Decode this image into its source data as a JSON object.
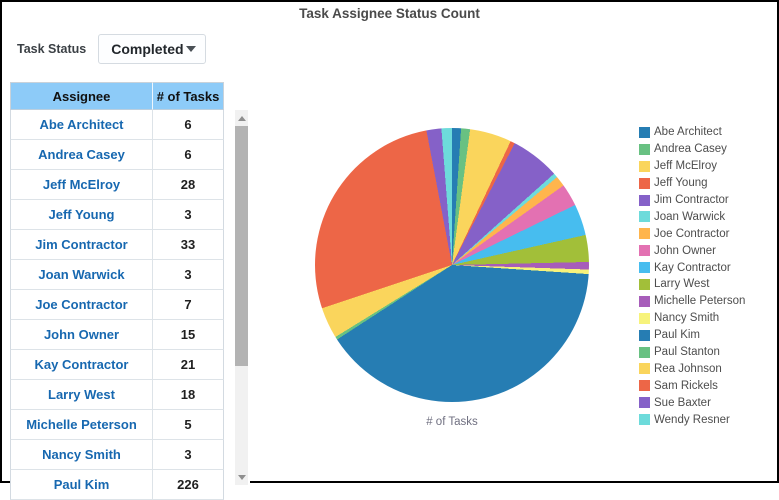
{
  "title": "Task Assignee Status Count",
  "filter": {
    "label": "Task Status",
    "value": "Completed"
  },
  "table": {
    "columns": [
      "Assignee",
      "# of Tasks"
    ],
    "rows": [
      [
        "Abe Architect",
        6
      ],
      [
        "Andrea Casey",
        6
      ],
      [
        "Jeff McElroy",
        28
      ],
      [
        "Jeff Young",
        3
      ],
      [
        "Jim Contractor",
        33
      ],
      [
        "Joan Warwick",
        3
      ],
      [
        "Joe Contractor",
        7
      ],
      [
        "John Owner",
        15
      ],
      [
        "Kay Contractor",
        21
      ],
      [
        "Larry West",
        18
      ],
      [
        "Michelle Peterson",
        5
      ],
      [
        "Nancy Smith",
        3
      ],
      [
        "Paul Kim",
        226
      ]
    ]
  },
  "chart_data": {
    "type": "pie",
    "title": "",
    "footer_label": "# of Tasks",
    "categories": [
      "Abe Architect",
      "Andrea Casey",
      "Jeff McElroy",
      "Jeff Young",
      "Jim Contractor",
      "Joan Warwick",
      "Joe Contractor",
      "John Owner",
      "Kay Contractor",
      "Larry West",
      "Michelle Peterson",
      "Nancy Smith",
      "Paul Kim",
      "Paul Stanton",
      "Rea Johnson",
      "Sam Rickels",
      "Sue Baxter",
      "Wendy Resner"
    ],
    "values": [
      6,
      6,
      28,
      3,
      33,
      3,
      7,
      15,
      21,
      18,
      5,
      3,
      226,
      2,
      21,
      154,
      10,
      7
    ],
    "palette": [
      "#267db3",
      "#68c182",
      "#fad55c",
      "#ed6647",
      "#8561c8",
      "#6ddbdb",
      "#ffb54d",
      "#e371b2",
      "#47bdef",
      "#a2bf39",
      "#a75dba",
      "#f7f37b"
    ],
    "legend_position": "right",
    "start_angle_deg": 0,
    "direction": "clockwise"
  },
  "colors": {
    "header_bg": "#8dcbf8",
    "row_name_text": "#1768b0",
    "title_text": "#4a4a4a",
    "scroll_thumb": "#b3b3b3"
  }
}
